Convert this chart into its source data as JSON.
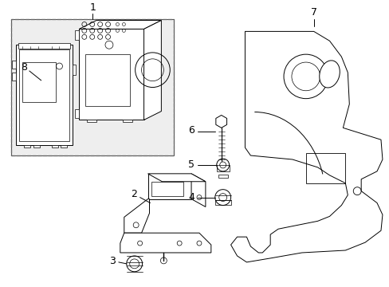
{
  "background_color": "#ffffff",
  "line_color": "#000000",
  "fig_width": 4.89,
  "fig_height": 3.6,
  "dpi": 100,
  "line_width": 0.7,
  "box_fill": "#eeeeee"
}
